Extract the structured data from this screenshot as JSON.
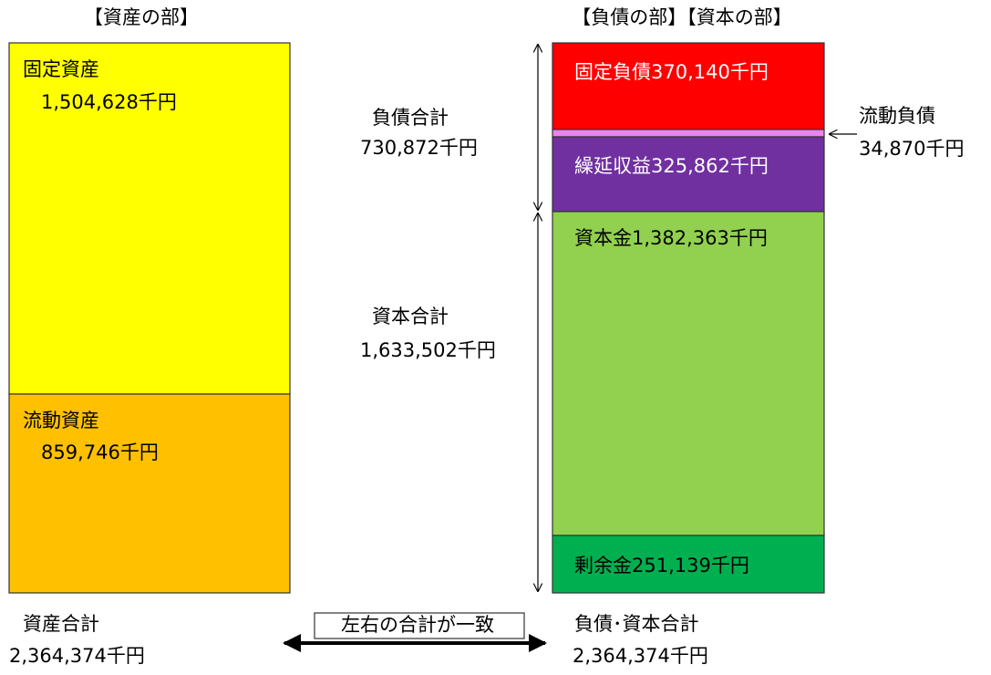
{
  "assets": {
    "heading": "【資産の部】",
    "fixed": {
      "label": "固定資産",
      "amount": "1,504,628千円"
    },
    "current": {
      "label": "流動資産",
      "amount": "859,746千円"
    },
    "total": {
      "label": "資産合計",
      "amount": "2,364,374千円"
    }
  },
  "liabilities_equity": {
    "heading": "【負債の部】【資本の部】",
    "fixed_liabilities": "固定負債370,140千円",
    "current_liabilities": {
      "label": "流動負債",
      "amount": "34,870千円"
    },
    "deferred_revenue": "繰延収益325,862千円",
    "capital": "資本金1,382,363千円",
    "surplus": "剰余金251,139千円",
    "liabilities_total": {
      "label": "負債合計",
      "amount": "730,872千円"
    },
    "equity_total": {
      "label": "資本合計",
      "amount": "1,633,502千円"
    },
    "total": {
      "label": "負債･資本合計",
      "amount": "2,364,374千円"
    }
  },
  "match_note": "左右の合計が一致"
}
